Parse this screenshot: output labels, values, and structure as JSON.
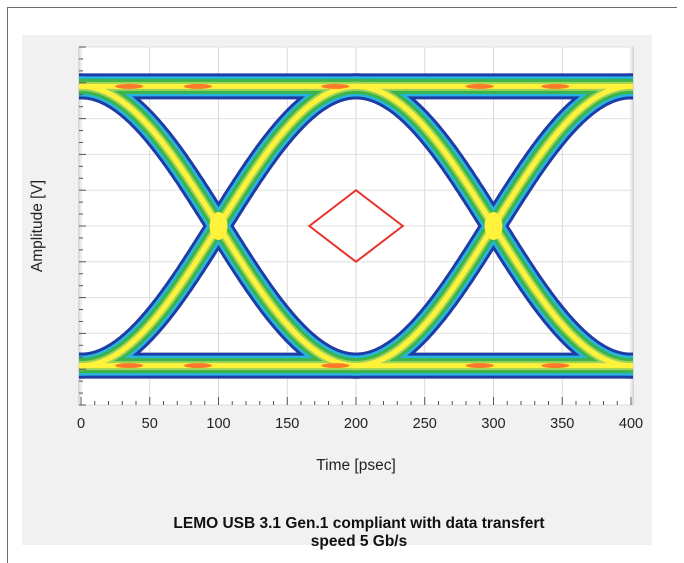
{
  "chart_data": {
    "type": "heatmap",
    "subtype": "eye-diagram",
    "title": "",
    "xlabel": "Time [psec]",
    "ylabel": "Amplitude [V]",
    "xlim": [
      0,
      400
    ],
    "ylim": [
      -1,
      1
    ],
    "x_ticks": [
      0,
      50,
      100,
      150,
      200,
      250,
      300,
      350,
      400
    ],
    "x_tick_labels": [
      "0",
      "50",
      "100",
      "150",
      "200",
      "250",
      "300",
      "350",
      "400"
    ],
    "y_tick_labels": [],
    "grid": true,
    "unit_interval_ps": 200,
    "crossing_points_ps": [
      100,
      300
    ],
    "eye_mask": {
      "color": "#e8332b",
      "points": [
        [
          166,
          0
        ],
        [
          200,
          0.2
        ],
        [
          234,
          0
        ],
        [
          200,
          -0.2
        ]
      ]
    },
    "density_colors": [
      "#1f3ca6",
      "#27b4e0",
      "#3bb44a",
      "#9ed25a",
      "#fff23a",
      "#ff7a2a"
    ]
  },
  "caption": {
    "line1": "LEMO USB 3.1 Gen.1 compliant with data transfert",
    "line2": "speed 5 Gb/s"
  }
}
